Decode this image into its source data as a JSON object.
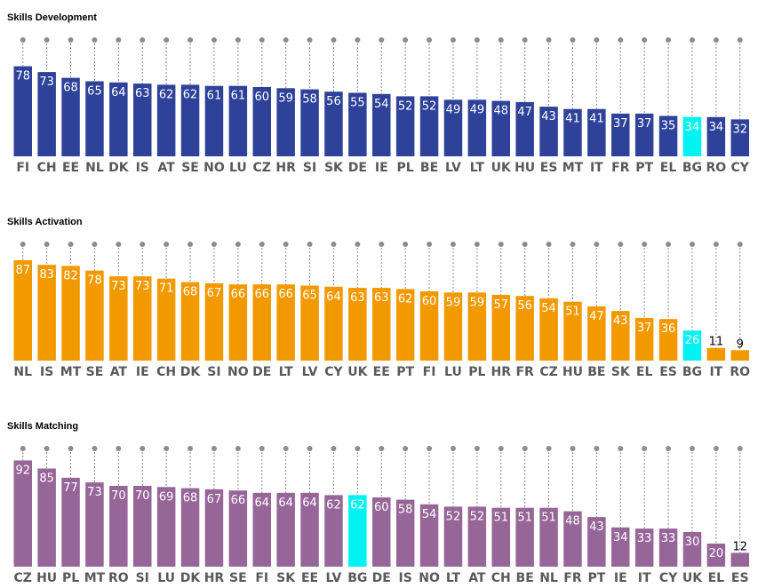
{
  "chart_data": [
    {
      "type": "bar",
      "title": "Skills Development",
      "color": "#2e4299",
      "highlight": "BG",
      "highlight_color": "#00f2f2",
      "ylim": [
        0,
        100
      ],
      "categories": [
        "FI",
        "CH",
        "EE",
        "NL",
        "DK",
        "IS",
        "AT",
        "SE",
        "NO",
        "LU",
        "CZ",
        "HR",
        "SI",
        "SK",
        "DE",
        "IE",
        "PL",
        "BE",
        "LV",
        "LT",
        "UK",
        "HU",
        "ES",
        "MT",
        "IT",
        "FR",
        "PT",
        "EL",
        "BG",
        "RO",
        "CY"
      ],
      "values": [
        78,
        73,
        68,
        65,
        64,
        63,
        62,
        62,
        61,
        61,
        60,
        59,
        58,
        56,
        55,
        54,
        52,
        52,
        49,
        49,
        48,
        47,
        43,
        41,
        41,
        37,
        37,
        35,
        34,
        34,
        32
      ]
    },
    {
      "type": "bar",
      "title": "Skills Activation",
      "color": "#f39900",
      "highlight": "BG",
      "highlight_color": "#00f2f2",
      "ylim": [
        0,
        100
      ],
      "categories": [
        "NL",
        "IS",
        "MT",
        "SE",
        "AT",
        "IE",
        "CH",
        "DK",
        "SI",
        "NO",
        "DE",
        "LT",
        "LV",
        "CY",
        "UK",
        "EE",
        "PT",
        "FI",
        "LU",
        "PL",
        "HR",
        "FR",
        "CZ",
        "HU",
        "BE",
        "SK",
        "EL",
        "ES",
        "BG",
        "IT",
        "RO"
      ],
      "values": [
        87,
        83,
        82,
        78,
        73,
        73,
        71,
        68,
        67,
        66,
        66,
        66,
        65,
        64,
        63,
        63,
        62,
        60,
        59,
        59,
        57,
        56,
        54,
        51,
        47,
        43,
        37,
        36,
        26,
        11,
        9
      ]
    },
    {
      "type": "bar",
      "title": "Skills Matching",
      "color": "#976699",
      "highlight": "BG",
      "highlight_color": "#00f2f2",
      "ylim": [
        0,
        100
      ],
      "categories": [
        "CZ",
        "HU",
        "PL",
        "MT",
        "RO",
        "SI",
        "LU",
        "DK",
        "HR",
        "SE",
        "FI",
        "SK",
        "EE",
        "LV",
        "BG",
        "DE",
        "IS",
        "NO",
        "LT",
        "AT",
        "CH",
        "BE",
        "NL",
        "FR",
        "PT",
        "IE",
        "IT",
        "CY",
        "UK",
        "EL",
        "ES"
      ],
      "values": [
        92,
        85,
        77,
        73,
        70,
        70,
        69,
        68,
        67,
        66,
        64,
        64,
        64,
        62,
        62,
        60,
        58,
        54,
        52,
        52,
        51,
        51,
        51,
        48,
        43,
        34,
        33,
        33,
        30,
        20,
        12
      ]
    }
  ]
}
